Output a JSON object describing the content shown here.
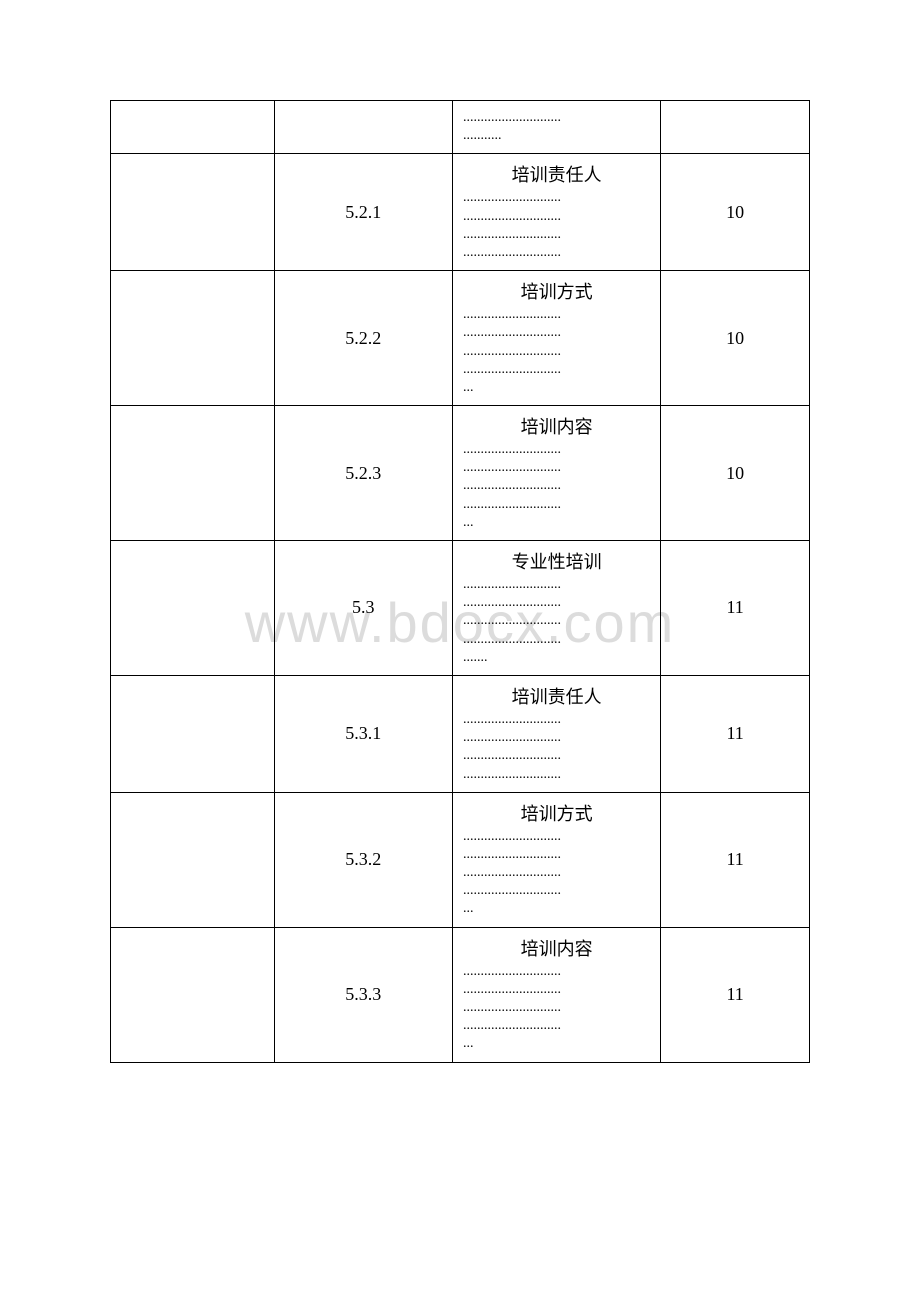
{
  "watermark": "www.bdocx.com",
  "table": {
    "columns": [
      "col1",
      "col2",
      "col3",
      "col4"
    ],
    "column_widths_pct": [
      22,
      24,
      28,
      20
    ],
    "border_color": "#000000",
    "font_family": "SimSun",
    "title_fontsize": 18,
    "dots_fontsize": 14,
    "rows": [
      {
        "section": "",
        "title": "",
        "dot_lines": 2,
        "page": ""
      },
      {
        "section": "5.2.1",
        "title": "培训责任人",
        "dot_lines": 4,
        "page": "10"
      },
      {
        "section": "5.2.2",
        "title": "培训方式",
        "dot_lines": 5,
        "page": "10"
      },
      {
        "section": "5.2.3",
        "title": "培训内容",
        "dot_lines": 5,
        "page": "10"
      },
      {
        "section": "5.3",
        "title": "专业性培训",
        "dot_lines": 5,
        "page": "11"
      },
      {
        "section": "5.3.1",
        "title": "培训责任人",
        "dot_lines": 4,
        "page": "11"
      },
      {
        "section": "5.3.2",
        "title": "培训方式",
        "dot_lines": 5,
        "page": "11"
      },
      {
        "section": "5.3.3",
        "title": "培训内容",
        "dot_lines": 5,
        "page": "11"
      }
    ]
  },
  "colors": {
    "background": "#ffffff",
    "text": "#000000",
    "border": "#000000",
    "watermark": "#dcdcdc"
  }
}
